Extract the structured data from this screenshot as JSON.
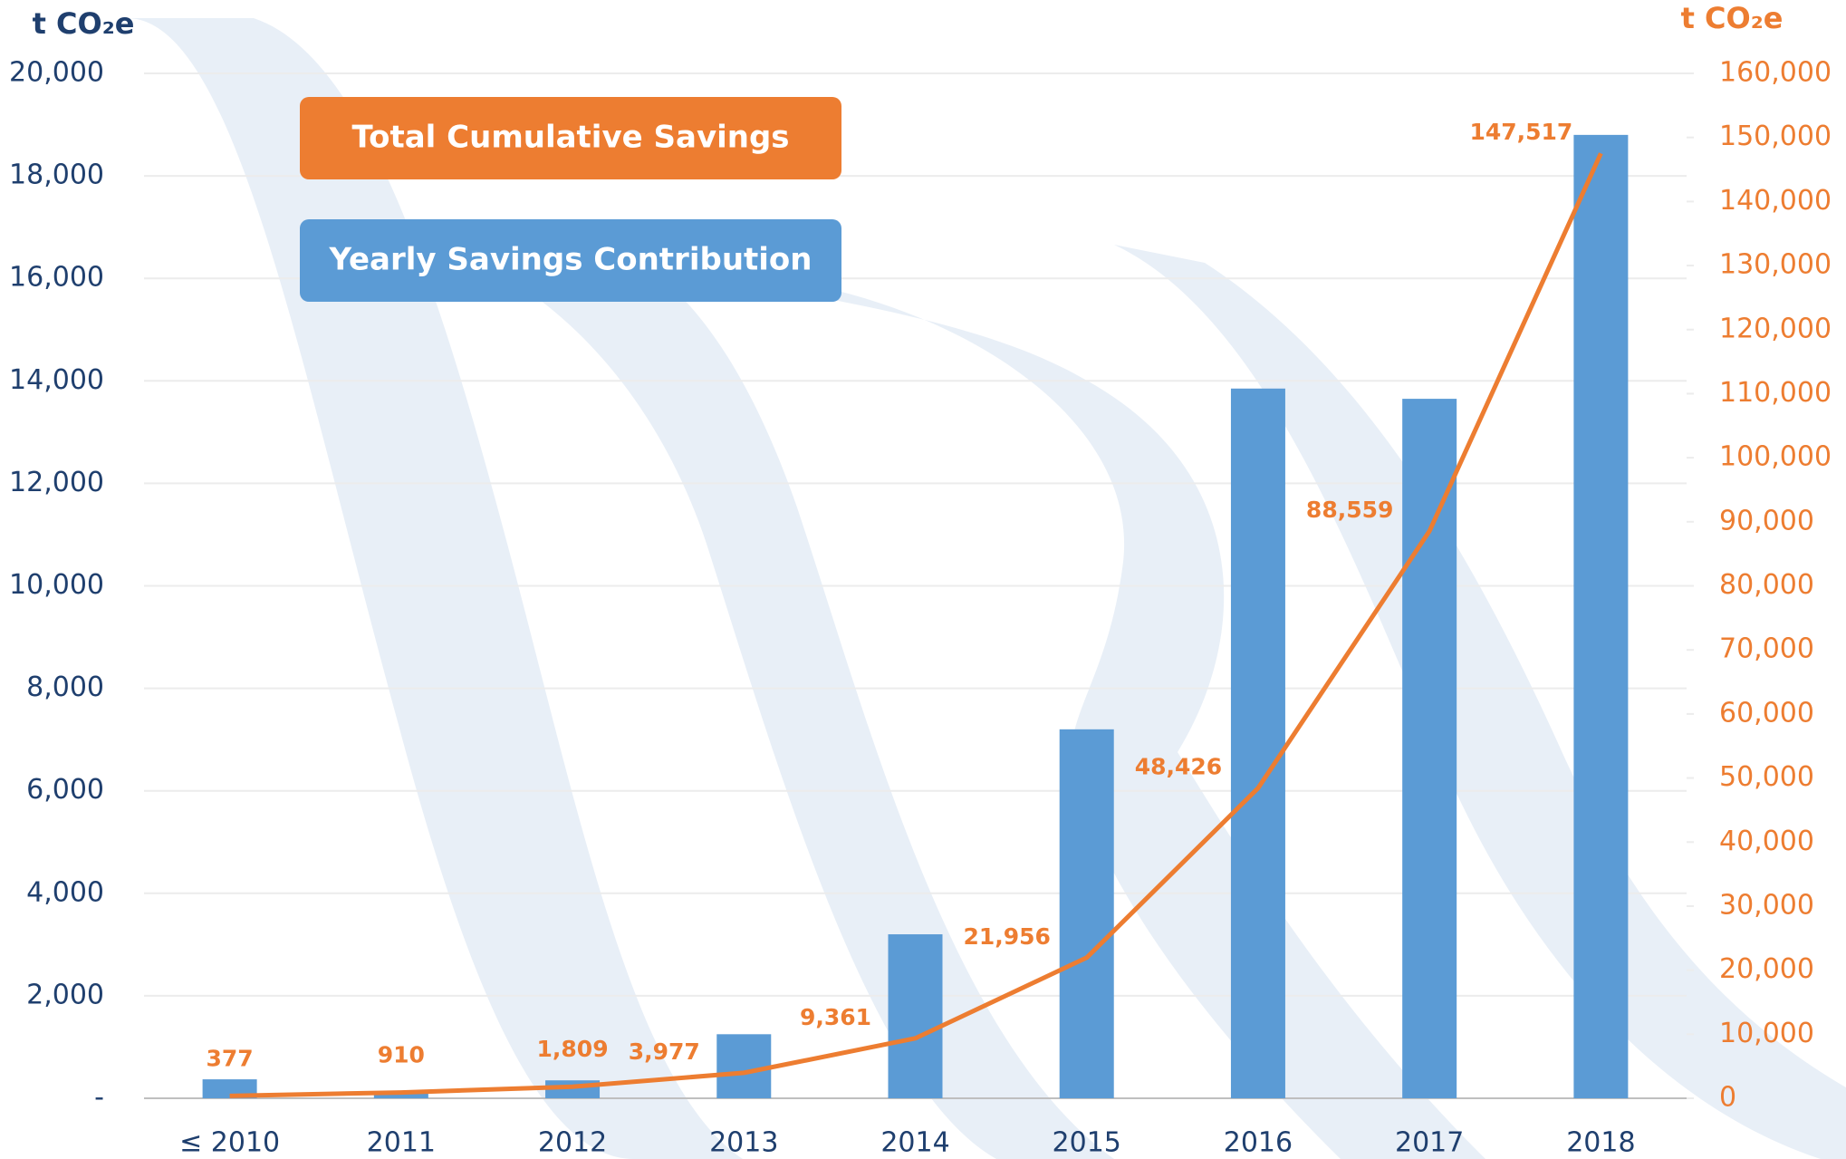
{
  "chart_data": {
    "type": "bar",
    "categories": [
      "≤ 2010",
      "2011",
      "2012",
      "2013",
      "2014",
      "2015",
      "2016",
      "2017",
      "2018"
    ],
    "ylabel": "t CO₂e",
    "y2label": "t CO₂e",
    "ylim": [
      0,
      20000
    ],
    "yticks": [
      {
        "value": 0,
        "label": "-"
      },
      {
        "value": 2000,
        "label": "2,000"
      },
      {
        "value": 4000,
        "label": "4,000"
      },
      {
        "value": 6000,
        "label": "6,000"
      },
      {
        "value": 8000,
        "label": "8,000"
      },
      {
        "value": 10000,
        "label": "10,000"
      },
      {
        "value": 12000,
        "label": "12,000"
      },
      {
        "value": 14000,
        "label": "14,000"
      },
      {
        "value": 16000,
        "label": "16,000"
      },
      {
        "value": 18000,
        "label": "18,000"
      },
      {
        "value": 20000,
        "label": "20,000"
      }
    ],
    "y2lim": [
      0,
      160000
    ],
    "y2ticks": [
      0,
      {
        "value": 10000,
        "label": "10,000"
      },
      {
        "value": 20000,
        "label": "20,000"
      },
      {
        "value": 30000,
        "label": "30,000"
      },
      {
        "value": 40000,
        "label": "40,000"
      },
      {
        "value": 50000,
        "label": "50,000"
      },
      {
        "value": 60000,
        "label": "60,000"
      },
      {
        "value": 70000,
        "label": "70,000"
      },
      {
        "value": 80000,
        "label": "80,000"
      },
      {
        "value": 90000,
        "label": "90,000"
      },
      {
        "value": 100000,
        "label": "100,000"
      },
      {
        "value": 110000,
        "label": "110,000"
      },
      {
        "value": 120000,
        "label": "120,000"
      },
      {
        "value": 130000,
        "label": "130,000"
      },
      {
        "value": 140000,
        "label": "140,000"
      },
      {
        "value": 150000,
        "label": "150,000"
      },
      {
        "value": 160000,
        "label": "160,000"
      }
    ],
    "grid": true,
    "series": [
      {
        "name": "Total Cumulative Savings",
        "type": "line",
        "axis": "y2",
        "color": "#ed7d31",
        "values": [
          377,
          910,
          1809,
          3977,
          9361,
          21956,
          48426,
          88559,
          147517
        ],
        "value_labels": [
          "377",
          "910",
          "1,809",
          "3,977",
          "9,361",
          "21,956",
          "48,426",
          "88,559",
          "147,517"
        ]
      },
      {
        "name": "Yearly Savings Contribution",
        "type": "bar",
        "color": "#5b9bd5",
        "values": [
          370,
          100,
          350,
          1250,
          3200,
          7200,
          13850,
          13650,
          18800
        ]
      }
    ]
  }
}
